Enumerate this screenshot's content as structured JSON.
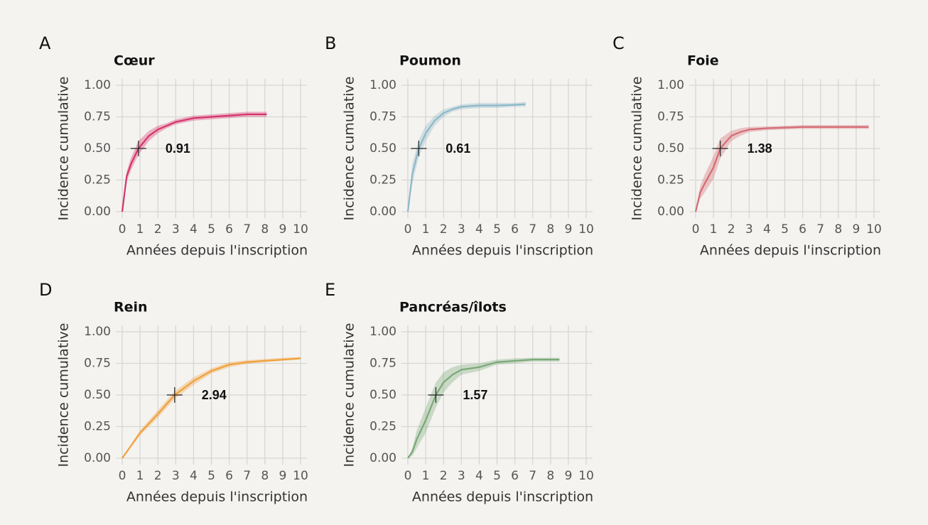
{
  "chart_data": [
    {
      "type": "line",
      "panel": "A",
      "title": "Cœur",
      "xlabel": "Années depuis l'inscription",
      "ylabel": "Incidence cumulative",
      "color": "#d6336c",
      "xlim": [
        0,
        10
      ],
      "ylim": [
        0,
        1
      ],
      "xticks": [
        0,
        1,
        2,
        3,
        4,
        5,
        6,
        7,
        8,
        9,
        10
      ],
      "yticks": [
        {
          "value": 0,
          "label": "0.00"
        },
        0.25,
        {
          "value": 0.5,
          "label": "0.50"
        },
        0.75,
        {
          "value": 1,
          "label": "1.00"
        }
      ],
      "x": [
        0,
        0.25,
        0.5,
        0.91,
        1.5,
        2,
        2.5,
        3,
        4,
        5,
        6,
        7,
        8.1
      ],
      "values": [
        0,
        0.28,
        0.38,
        0.5,
        0.6,
        0.65,
        0.68,
        0.71,
        0.74,
        0.75,
        0.76,
        0.77,
        0.77
      ],
      "lower": [
        0,
        0.24,
        0.33,
        0.45,
        0.56,
        0.62,
        0.66,
        0.69,
        0.72,
        0.73,
        0.74,
        0.75,
        0.75
      ],
      "upper": [
        0,
        0.32,
        0.43,
        0.56,
        0.64,
        0.68,
        0.7,
        0.73,
        0.76,
        0.77,
        0.78,
        0.79,
        0.79
      ],
      "median_marker": {
        "x": 0.91,
        "y": 0.5
      }
    },
    {
      "type": "line",
      "panel": "B",
      "title": "Poumon",
      "xlabel": "Années depuis l'inscription",
      "ylabel": "Incidence cumulative",
      "color": "#8db8c8",
      "xlim": [
        0,
        10
      ],
      "ylim": [
        0,
        1
      ],
      "xticks": [
        0,
        1,
        2,
        3,
        4,
        5,
        6,
        7,
        8,
        9,
        10
      ],
      "yticks": [
        {
          "value": 0,
          "label": "0.00"
        },
        0.25,
        {
          "value": 0.5,
          "label": "0.50"
        },
        0.75,
        {
          "value": 1,
          "label": "1.00"
        }
      ],
      "x": [
        0,
        0.25,
        0.61,
        1,
        1.5,
        2,
        2.5,
        3,
        4,
        5,
        6,
        6.6
      ],
      "values": [
        0,
        0.3,
        0.5,
        0.62,
        0.72,
        0.78,
        0.81,
        0.83,
        0.84,
        0.84,
        0.845,
        0.85
      ],
      "lower": [
        0,
        0.22,
        0.43,
        0.56,
        0.68,
        0.75,
        0.79,
        0.81,
        0.82,
        0.82,
        0.83,
        0.83
      ],
      "upper": [
        0,
        0.38,
        0.57,
        0.68,
        0.76,
        0.81,
        0.83,
        0.85,
        0.86,
        0.86,
        0.86,
        0.87
      ],
      "median_marker": {
        "x": 0.61,
        "y": 0.5
      }
    },
    {
      "type": "line",
      "panel": "C",
      "title": "Foie",
      "xlabel": "Années depuis l'inscription",
      "ylabel": "Incidence cumulative",
      "color": "#d46b74",
      "xlim": [
        0,
        10
      ],
      "ylim": [
        0,
        1
      ],
      "xticks": [
        0,
        1,
        2,
        3,
        4,
        5,
        6,
        7,
        8,
        9,
        10
      ],
      "yticks": [
        {
          "value": 0,
          "label": "0.00"
        },
        0.25,
        {
          "value": 0.5,
          "label": "0.50"
        },
        0.75,
        {
          "value": 1,
          "label": "1.00"
        }
      ],
      "x": [
        0,
        0.25,
        0.5,
        1,
        1.38,
        2,
        2.5,
        3,
        4,
        5,
        6,
        7,
        8,
        9,
        9.7
      ],
      "values": [
        0,
        0.15,
        0.22,
        0.35,
        0.5,
        0.6,
        0.63,
        0.65,
        0.66,
        0.665,
        0.67,
        0.67,
        0.67,
        0.67,
        0.67
      ],
      "lower": [
        0,
        0.1,
        0.15,
        0.26,
        0.42,
        0.56,
        0.6,
        0.63,
        0.645,
        0.65,
        0.655,
        0.655,
        0.655,
        0.655,
        0.655
      ],
      "upper": [
        0,
        0.2,
        0.29,
        0.44,
        0.58,
        0.64,
        0.66,
        0.67,
        0.675,
        0.68,
        0.685,
        0.685,
        0.685,
        0.685,
        0.685
      ],
      "median_marker": {
        "x": 1.38,
        "y": 0.5
      }
    },
    {
      "type": "line",
      "panel": "D",
      "title": "Rein",
      "xlabel": "Années depuis l'inscription",
      "ylabel": "Incidence cumulative",
      "color": "#f0a03c",
      "xlim": [
        0,
        10
      ],
      "ylim": [
        0,
        1
      ],
      "xticks": [
        0,
        1,
        2,
        3,
        4,
        5,
        6,
        7,
        8,
        9,
        10
      ],
      "yticks": [
        {
          "value": 0,
          "label": "0.00"
        },
        0.25,
        {
          "value": 0.5,
          "label": "0.50"
        },
        0.75,
        {
          "value": 1,
          "label": "1.00"
        }
      ],
      "x": [
        0,
        1,
        2,
        2.94,
        4,
        5,
        6,
        7,
        8,
        9,
        10
      ],
      "values": [
        0,
        0.2,
        0.35,
        0.5,
        0.61,
        0.69,
        0.74,
        0.76,
        0.77,
        0.78,
        0.79
      ],
      "lower": [
        0,
        0.18,
        0.32,
        0.47,
        0.58,
        0.67,
        0.72,
        0.745,
        0.76,
        0.77,
        0.78
      ],
      "upper": [
        0,
        0.22,
        0.38,
        0.53,
        0.64,
        0.71,
        0.76,
        0.775,
        0.785,
        0.795,
        0.8
      ],
      "median_marker": {
        "x": 2.94,
        "y": 0.5
      }
    },
    {
      "type": "line",
      "panel": "E",
      "title": "Pancréas/îlots",
      "xlabel": "Années depuis l'inscription",
      "ylabel": "Incidence cumulative",
      "color": "#7aa878",
      "xlim": [
        0,
        10
      ],
      "ylim": [
        0,
        1
      ],
      "xticks": [
        0,
        1,
        2,
        3,
        4,
        5,
        6,
        7,
        8,
        9,
        10
      ],
      "yticks": [
        {
          "value": 0,
          "label": "0.00"
        },
        0.25,
        {
          "value": 0.5,
          "label": "0.50"
        },
        0.75,
        {
          "value": 1,
          "label": "1.00"
        }
      ],
      "x": [
        0,
        0.25,
        0.5,
        1,
        1.57,
        2,
        2.5,
        3,
        4,
        5,
        6,
        7,
        8,
        8.5
      ],
      "values": [
        0,
        0.05,
        0.15,
        0.3,
        0.5,
        0.6,
        0.66,
        0.7,
        0.72,
        0.76,
        0.77,
        0.78,
        0.78,
        0.78
      ],
      "lower": [
        0,
        0.02,
        0.08,
        0.2,
        0.4,
        0.52,
        0.6,
        0.66,
        0.69,
        0.74,
        0.75,
        0.765,
        0.765,
        0.765
      ],
      "upper": [
        0,
        0.08,
        0.22,
        0.4,
        0.6,
        0.68,
        0.72,
        0.74,
        0.75,
        0.78,
        0.79,
        0.795,
        0.795,
        0.795
      ],
      "median_marker": {
        "x": 1.57,
        "y": 0.5
      }
    }
  ]
}
